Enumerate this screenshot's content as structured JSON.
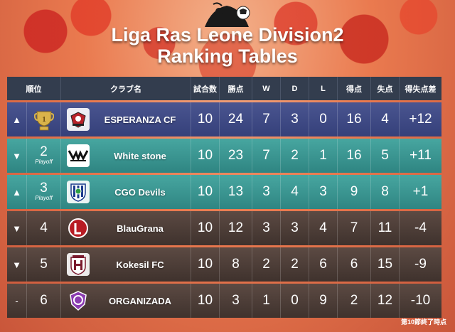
{
  "header": {
    "title_line1": "Liga Ras Leone Division2",
    "title_line2": "Ranking Tables"
  },
  "columns": {
    "rank": "順位",
    "club": "クラブ名",
    "played": "試合数",
    "points": "勝点",
    "w": "W",
    "d": "D",
    "l": "L",
    "gf": "得点",
    "ga": "失点",
    "gd": "得失点差"
  },
  "rows": [
    {
      "arrow": "▲",
      "rank": "",
      "playoff": "",
      "club": "ESPERANZA CF",
      "logo_icon": "esperanza-crest-icon",
      "played": "10",
      "points": "24",
      "w": "7",
      "d": "3",
      "l": "0",
      "gf": "16",
      "ga": "4",
      "gd": "+12"
    },
    {
      "arrow": "▼",
      "rank": "2",
      "playoff": "Playoff",
      "club": "White stone",
      "logo_icon": "white-stone-crest-icon",
      "played": "10",
      "points": "23",
      "w": "7",
      "d": "2",
      "l": "1",
      "gf": "16",
      "ga": "5",
      "gd": "+11"
    },
    {
      "arrow": "▲",
      "rank": "3",
      "playoff": "Playoff",
      "club": "CGO Devils",
      "logo_icon": "cgo-devils-crest-icon",
      "played": "10",
      "points": "13",
      "w": "3",
      "d": "4",
      "l": "3",
      "gf": "9",
      "ga": "8",
      "gd": "+1"
    },
    {
      "arrow": "▼",
      "rank": "4",
      "playoff": "",
      "club": "BlauGrana",
      "logo_icon": "blaugrana-crest-icon",
      "played": "10",
      "points": "12",
      "w": "3",
      "d": "3",
      "l": "4",
      "gf": "7",
      "ga": "11",
      "gd": "-4"
    },
    {
      "arrow": "▼",
      "rank": "5",
      "playoff": "",
      "club": "Kokesil FC",
      "logo_icon": "kokesil-crest-icon",
      "played": "10",
      "points": "8",
      "w": "2",
      "d": "2",
      "l": "6",
      "gf": "6",
      "ga": "15",
      "gd": "-9"
    },
    {
      "arrow": "-",
      "rank": "6",
      "playoff": "",
      "club": "ORGANIZADA",
      "logo_icon": "organizada-crest-icon",
      "played": "10",
      "points": "3",
      "w": "1",
      "d": "0",
      "l": "9",
      "gf": "2",
      "ga": "12",
      "gd": "-10"
    }
  ],
  "footnote": "第10節終了時点",
  "colors": {
    "header_bg": "#333d4e",
    "first_row": "#3f4a85",
    "playoff_rows": "#3b9691",
    "other_rows": "#4e3e38",
    "background": "#ea7a4f"
  }
}
